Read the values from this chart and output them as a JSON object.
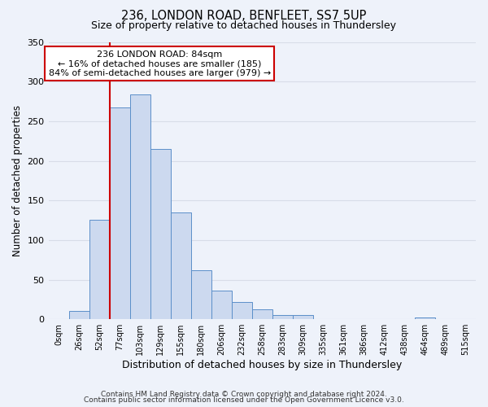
{
  "title1": "236, LONDON ROAD, BENFLEET, SS7 5UP",
  "title2": "Size of property relative to detached houses in Thundersley",
  "xlabel": "Distribution of detached houses by size in Thundersley",
  "ylabel": "Number of detached properties",
  "bar_labels": [
    "0sqm",
    "26sqm",
    "52sqm",
    "77sqm",
    "103sqm",
    "129sqm",
    "155sqm",
    "180sqm",
    "206sqm",
    "232sqm",
    "258sqm",
    "283sqm",
    "309sqm",
    "335sqm",
    "361sqm",
    "386sqm",
    "412sqm",
    "438sqm",
    "464sqm",
    "489sqm",
    "515sqm"
  ],
  "bar_values": [
    0,
    11,
    126,
    267,
    284,
    215,
    135,
    62,
    36,
    22,
    13,
    5,
    5,
    0,
    0,
    0,
    0,
    0,
    2,
    0,
    0
  ],
  "bar_color": "#ccd9ef",
  "bar_edge_color": "#5b8fc9",
  "red_line_index": 3,
  "annotation_title": "236 LONDON ROAD: 84sqm",
  "annotation_line1": "← 16% of detached houses are smaller (185)",
  "annotation_line2": "84% of semi-detached houses are larger (979) →",
  "annotation_box_color": "#ffffff",
  "annotation_box_edge": "#cc0000",
  "red_line_color": "#cc0000",
  "ylim": [
    0,
    350
  ],
  "yticks": [
    0,
    50,
    100,
    150,
    200,
    250,
    300,
    350
  ],
  "footer1": "Contains HM Land Registry data © Crown copyright and database right 2024.",
  "footer2": "Contains public sector information licensed under the Open Government Licence v3.0.",
  "bg_color": "#eef2fa",
  "plot_bg_color": "#eef2fa",
  "grid_color": "#d8dde8"
}
